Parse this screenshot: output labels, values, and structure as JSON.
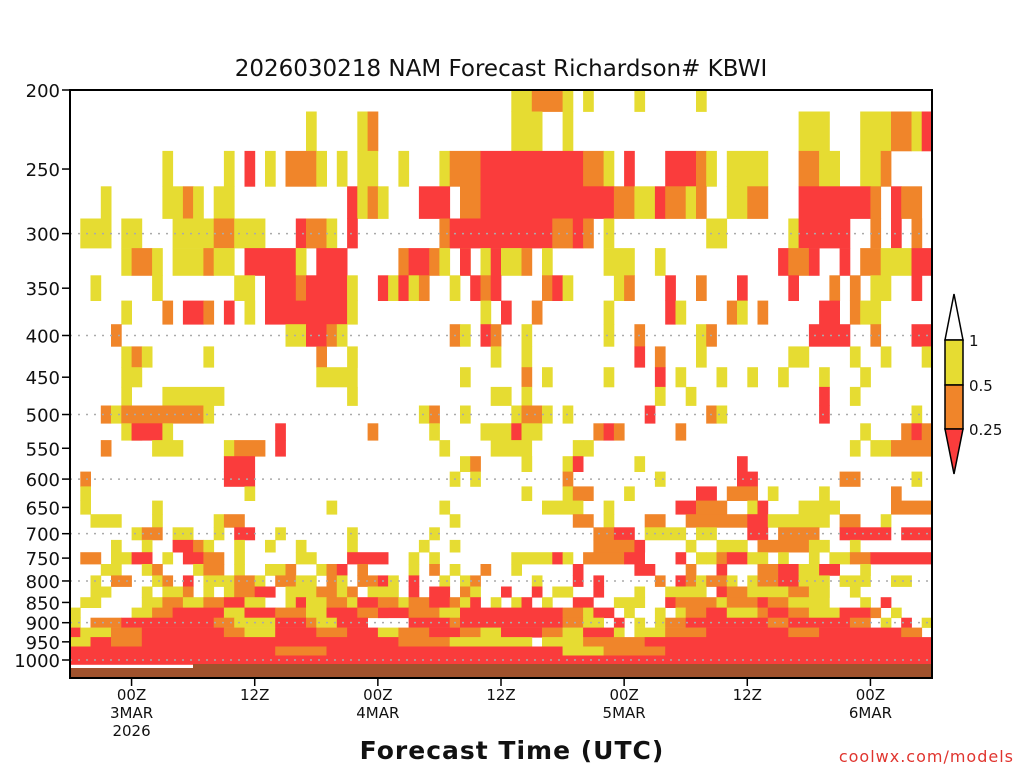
{
  "chart_data": {
    "type": "heatmap",
    "title": "2026030218 NAM Forecast Richardson# KBWI",
    "xlabel": "Forecast Time (UTC)",
    "ylabel": "",
    "y_axis": {
      "scale": "log",
      "range_hpa": [
        200,
        1000
      ],
      "inverted": true,
      "tick_labels": [
        "200",
        "250",
        "300",
        "350",
        "400",
        "450",
        "500",
        "550",
        "600",
        "650",
        "700",
        "750",
        "800",
        "850",
        "900",
        "950",
        "1000"
      ],
      "tick_values": [
        200,
        250,
        300,
        350,
        400,
        450,
        500,
        550,
        600,
        650,
        700,
        750,
        800,
        850,
        900,
        950,
        1000
      ],
      "grid_values": [
        300,
        400,
        500,
        600,
        700,
        800,
        900,
        1000
      ]
    },
    "x_axis": {
      "unit": "forecast hour",
      "range_hours": [
        0,
        84
      ],
      "ticks": [
        {
          "hour": 6,
          "lines": [
            "00Z",
            "3MAR",
            "2026"
          ]
        },
        {
          "hour": 18,
          "lines": [
            "12Z"
          ]
        },
        {
          "hour": 30,
          "lines": [
            "00Z",
            "4MAR"
          ]
        },
        {
          "hour": 42,
          "lines": [
            "12Z"
          ]
        },
        {
          "hour": 54,
          "lines": [
            "00Z",
            "5MAR"
          ]
        },
        {
          "hour": 66,
          "lines": [
            "12Z"
          ]
        },
        {
          "hour": 78,
          "lines": [
            "00Z",
            "6MAR"
          ]
        }
      ]
    },
    "legend": {
      "placement": "right",
      "labels": [
        "1",
        "0.5",
        "0.25"
      ],
      "bins": [
        {
          "code": "y",
          "range": "0.5-1",
          "color": "#e6dc32"
        },
        {
          "code": "o",
          "range": "0.25-0.5",
          "color": "#f0852a"
        },
        {
          "code": "r",
          "range": "<0.25",
          "color": "#fa3c3c"
        }
      ]
    },
    "ground_color": "#a0522d",
    "encoding": "each row lists runs 'cStart-End' in forecast hours (end exclusive); c = y/o/r bin",
    "levels": [
      200,
      225,
      250,
      275,
      300,
      325,
      350,
      375,
      400,
      425,
      450,
      475,
      500,
      525,
      550,
      575,
      600,
      625,
      650,
      675,
      700,
      725,
      750,
      775,
      800,
      825,
      850,
      875,
      900,
      925,
      950,
      975,
      1000
    ],
    "rows": [
      "y43-45,o45-48,y48,y50,y55,y61",
      "y23,y28,o29,y43-46,y48,y71-74,y77-80,o80-82,y82,r83",
      "y9,y15,r17,y19,o21-24,y24,y26,y28-30,y32,y36,o37-40,r40-50,o50-52,y52,r54,r58-61,o61-62,y62,y64-68,o71-73,y73-75,y77-79,o79-80",
      "y3-4,y9-11,o11,y12-13,y14-16,r27-28,y28,o29,y30,r34-37,o38-40,r40-53,o53-55,y55-57,r57,o58-60,y60-61,o61-62,y64-66,o66-68,r71-78,o78-79,r80-81,o81-83",
      "y1-4,y5-7,y10-14,o14-16,y16-19,r22-23,o23-25,y25,r27,o36-37,r37-47,o47-49,r49,o50-51,y52,y62-64,y70-71,r71-76,o78-79,r80-81,o82-83",
      "y5-6,o6-8,y8,y10-13,o13,y14-16,y17,r17-22,o22,y22,r24-27,o32-33,r33-35,o35,y36,y38,r38-39,y40,r41-42,y42-44,o44,y46-47,y52-55,y57-58,r69,o70-72,r72-73,r75-76,o77-79,y79-82,r82-84",
      "y2,y8,y16-18,r19-22,o22,r23-27,y27,r30,y31,r32,y33-34,o34-35,y37,r39,o40,r41,o46,r47,y48,y53-54,o54-55,r58,o61,r65,r70,o74,o76-77,y78-80,r82",
      "y5-6,o9-10,r11-13,o13-14,r15-16,y17,r19-27,y27,y40,r42,o45,y52,r58,y59-60,o64,y65,o67,r73-75,o76-77,y77-79",
      "o4,y21-23,r23-25,o25,y26,o37,y38,r40,o41-42,y44,y52-53,o55,y61,o62,r72-76,o78,r82-84",
      "y5,o6,y7,y13,o24,y27,y41,y44,r55,o57,y61,y70-72,y76,y79-80,y83",
      "y5-7,y24-28,y38,o44,y46,y52,r57,y59,y63,y66,y69,y73,y77-78",
      "y5,y9-15,y27-28,y41-43,y44,y57-58,y60-61,r73,y76",
      "o3,y4,o5-13,y13-14,y34,o35,y38,y43-44,o44-46,y46,y48-49,r56-57,o62,y63,r73,y82-83",
      "y5,o6,r6-9,y9-10,r20,o29,y35,y40,y41-43,r43,y44-46,o51,r52,o53,o59,y77,o81-82,r82,o83",
      "o3,y8-11,y15-16,o16-19,r20,y36,y41-45,y49,y50,y76,y78,y79,o80-84",
      "r15-18,y38,o39,y44,y48,r49,y55,r65",
      "o1,r15-18,y37,y39,o48,y57,r65-67,o75-77,y82",
      "y1,y17,y44,y48,o49-51,y54-55,r61-63,o64-67,y68,y73-74,o80",
      "y1,y8,y25,y36,y46-50,y52-53,r59-61,o61-64,y66,r67,y71-75,o80-84",
      "y2-5,y8,y14-15,o15-17,y37,o49-51,y52,o56-58,o60-66,r66-68,y68-74,o75-77,y79",
      "y6,o7-9,y10-12,y14-15,r16-18,y20,y27,y35,o51-53,r53-55,y56-60,y61-63,r66-68,o69-73,r75-80,r81-84",
      "y4,y7,r10-12,o12,y13,y16,y19,y22,y27-28,y34,y37,o51-55,r55-56,y60,y63-66,o67-72,y72-74,y76",
      "o1-3,y4-6,r6-8,y9,r11-13,o13-15,y16,y22-24,r27-31,y33,y35,y43-47,r47,y48,o50-54,r54-56,r59,y61,y62,o63,r64-66,y66-68,y69,y72,y74-76,o76-78,r78-84",
      "y3-5,y7,o8,y12,o13-15,y16,y19-21,o21-22,y24,o25,r26-27,o28,y33,o35,y37,o40,y43,r49,r55-57,o60,r63,o67-69,r69-71,y71-73,r73-75,y77",
      "y2-3,o4-6,y8,o9,r11,y13-16,o16-18,y18,o20-22,y22-24,o25,y26-27,o28-30,r30,y31,r33-34,y36,y38,o39,y45,r49,r51-52,o57,r59,o60,y61,o62-64,y64,y66,o67-69,r69-71,y71-74,y75-78,y80-82",
      "y2-4,y7,y9-11,o11-12,y13,y15,o16-18,r18-20,y21-24,o24-26,y26,o27-28,y29-32,r33,r35-37,o38,y39,r42,r45,y47-49,r51,y55,y58-62,r63,o64-66,y66-70,o70-72,y72-74,y76",
      "y1-3,y7-9,o9-11,y11-13,o13-15,r15-17,y17-19,y21,r22,y23-25,o25-27,y27,r28-30,o30-32,y32,o33-35,r35-37,o37,y38,r39,y41,y43,r44,y46,r49-51,y53-56,r58,o59-63,y63,o64-67,r67-68,o68-70,y70-74,y77-78,r79",
      "y0-1,y6-8,o8-10,r10-15,y15-17,r17-20,o20-23,y23-25,r25-28,o28-30,y30,r30-33,o33-36,y36-38,r38-48,o48-50,y50,r51-53,y54,y57,y59,o60-62,r62-64,y64-67,o67-68,r68-70,o70-72,y72-75,r75-78,o78-79,y80",
      "y0,o2-5,r5-14,o14-16,y16-20,r20-23,o23-24,y24-26,r26-29,r33-37,o37-38,r38-48,o48-50,y50-52,r53,y55,y57,o58-60,r60-68,o68-70,r70-76,o76-78,y79,r81-82,y83",
      "r0,y1-4,o4-7,r7-15,o15-17,y17-20,r20-24,o24-27,r27-30,y30-32,o32-35,r35-38,o38-40,y40-42,r42-46,o46-48,y48-50,r50-53,y53,y55-58,o58-62,r62-70,o70-73,r73-81,o81-83",
      "y0-2,r2-4,o4-7,r7-32,o32-37,y37-45,y46-50,o50-56,r56-84",
      "r0-20,o20-25,r25-48,y48-52,o52-58,r58-84",
      "r0-84"
    ]
  },
  "watermark": "coolwx.com/models"
}
